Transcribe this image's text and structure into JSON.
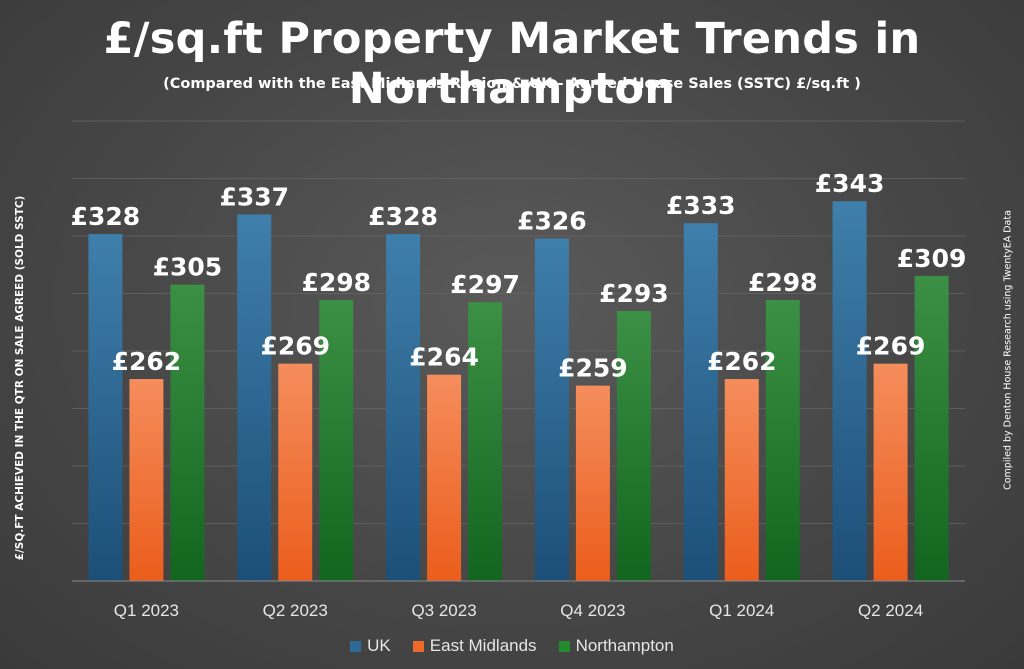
{
  "title": "£/sq.ft Property Market Trends in Northampton",
  "subtitle": "(Compared with the East Midlands Region & UK - Agreed House Sales (SSTC) £/sq.ft )",
  "credit": "Compiled by Denton House Research using TwentyEA Data",
  "chart_data": {
    "type": "bar",
    "title": "£/sq.ft Property Market Trends in Northampton",
    "subtitle": "(Compared with the East Midlands Region & UK - Agreed House Sales (SSTC) £/sq.ft )",
    "xlabel": "",
    "ylabel": "£/SQ.FT ACHIEVED IN THE QTR ON SALE AGREED (SOLD SSTC)",
    "categories": [
      "Q1 2023",
      "Q2 2023",
      "Q3 2023",
      "Q4 2023",
      "Q1 2024",
      "Q2 2024"
    ],
    "series": [
      {
        "name": "UK",
        "color": "#2e6a96",
        "values": [
          328,
          337,
          328,
          326,
          333,
          343
        ],
        "labels": [
          "£328",
          "£337",
          "£328",
          "£326",
          "£333",
          "£343"
        ]
      },
      {
        "name": "East Midlands",
        "color": "#f0692a",
        "values": [
          262,
          269,
          264,
          259,
          262,
          269
        ],
        "labels": [
          "£262",
          "£269",
          "£264",
          "£259",
          "£262",
          "£269"
        ]
      },
      {
        "name": "Northampton",
        "color": "#238a2e",
        "values": [
          305,
          298,
          297,
          293,
          298,
          309
        ],
        "labels": [
          "£305",
          "£298",
          "£297",
          "£293",
          "£298",
          "£309"
        ]
      }
    ],
    "ylim": [
      170,
      380
    ],
    "grid": true,
    "legend": "bottom"
  }
}
